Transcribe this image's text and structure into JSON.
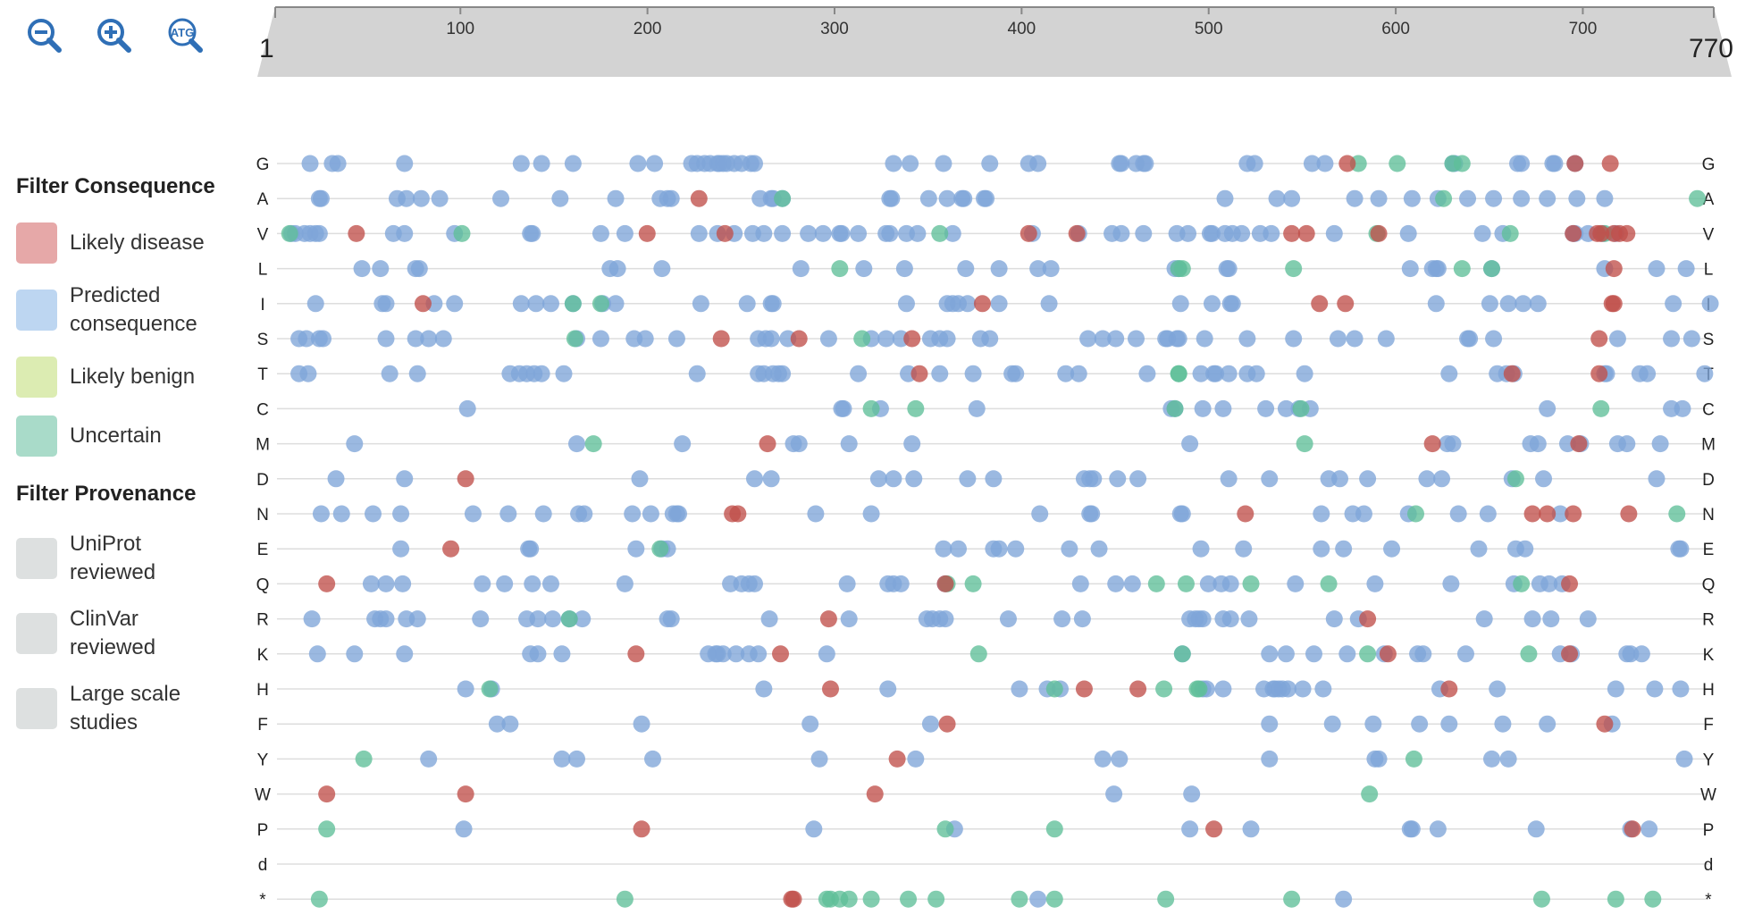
{
  "toolbar": {
    "zoom_out": "zoom-out-icon",
    "zoom_in": "zoom-in-icon",
    "atg_label": "ATG"
  },
  "ruler": {
    "start_label": "1",
    "end_label": "770",
    "ticks": [
      "100",
      "200",
      "300",
      "400",
      "500",
      "600",
      "700"
    ],
    "range": [
      1,
      770
    ]
  },
  "filters": {
    "consequence_title": "Filter Consequence",
    "consequence": [
      {
        "label": "Likely disease",
        "color": "#e6a8a8"
      },
      {
        "label": "Predicted consequence",
        "color": "#bdd6f1"
      },
      {
        "label": "Likely benign",
        "color": "#dcecb2"
      },
      {
        "label": "Uncertain",
        "color": "#a9dbc9"
      }
    ],
    "provenance_title": "Filter Provenance",
    "provenance": [
      {
        "label": "UniProt reviewed",
        "color": "#dde0e0"
      },
      {
        "label": "ClinVar reviewed",
        "color": "#dde0e0"
      },
      {
        "label": "Large scale studies",
        "color": "#dde0e0"
      }
    ]
  },
  "colors": {
    "predicted": "#7fa5d9",
    "disease": "#c0504a",
    "uncertain": "#5fbf98",
    "ruler_fill": "#d3d3d3",
    "gridline": "#dddddd"
  },
  "residues": [
    "G",
    "A",
    "V",
    "L",
    "I",
    "S",
    "T",
    "C",
    "M",
    "D",
    "N",
    "E",
    "Q",
    "R",
    "K",
    "H",
    "F",
    "Y",
    "W",
    "P",
    "d",
    "*"
  ],
  "variants": {
    "G": {
      "b": [
        15,
        27,
        30,
        66,
        129,
        140,
        157,
        192,
        201,
        221,
        224,
        228,
        231,
        235,
        236,
        238,
        240,
        244,
        248,
        253,
        255,
        330,
        339,
        357,
        382,
        403,
        408,
        452,
        453,
        461,
        465,
        466,
        521,
        525,
        556,
        563,
        632,
        633,
        667,
        669,
        686,
        687,
        698
      ],
      "r": [
        575,
        698,
        717
      ],
      "g": [
        581,
        602,
        637,
        632
      ]
    },
    "A": {
      "b": [
        20,
        21,
        62,
        67,
        75,
        85,
        118,
        150,
        180,
        204,
        208,
        210,
        258,
        264,
        265,
        270,
        328,
        329,
        349,
        359,
        367,
        368,
        379,
        380,
        509,
        537,
        545,
        579,
        592,
        610,
        624,
        640,
        654,
        669,
        683,
        699,
        714
      ],
      "r": [
        225
      ],
      "g": [
        270,
        627,
        764
      ]
    },
    "V": {
      "b": [
        5,
        7,
        12,
        15,
        18,
        20,
        60,
        66,
        93,
        134,
        135,
        172,
        185,
        225,
        235,
        244,
        254,
        260,
        270,
        284,
        292,
        301,
        302,
        311,
        326,
        328,
        337,
        343,
        362,
        405,
        430,
        448,
        453,
        465,
        483,
        489,
        501,
        502,
        509,
        513,
        518,
        528,
        534,
        568,
        608,
        648,
        659,
        697,
        698,
        713,
        720,
        705
      ],
      "r": [
        40,
        197,
        239,
        403,
        429,
        545,
        553,
        592,
        697,
        719,
        722,
        726,
        710,
        712
      ],
      "g": [
        4,
        97,
        355,
        591,
        663,
        714
      ]
    },
    "L": {
      "b": [
        43,
        53,
        72,
        74,
        177,
        181,
        205,
        280,
        314,
        336,
        369,
        387,
        408,
        415,
        482,
        484,
        510,
        511,
        609,
        621,
        623,
        624,
        653,
        714,
        742,
        758
      ],
      "r": [
        719
      ],
      "g": [
        301,
        484,
        486,
        546,
        637,
        653
      ]
    },
    "I": {
      "b": [
        18,
        54,
        56,
        82,
        93,
        129,
        137,
        145,
        157,
        173,
        180,
        226,
        251,
        264,
        265,
        337,
        359,
        362,
        365,
        370,
        387,
        414,
        485,
        502,
        512,
        513,
        623,
        652,
        662,
        670,
        678,
        751,
        771
      ],
      "r": [
        76,
        378,
        560,
        574,
        718,
        719
      ],
      "g": [
        157,
        172
      ]
    },
    "S": {
      "b": [
        9,
        13,
        20,
        22,
        56,
        72,
        79,
        87,
        159,
        172,
        190,
        196,
        213,
        257,
        261,
        264,
        273,
        295,
        318,
        326,
        334,
        350,
        355,
        359,
        377,
        382,
        435,
        443,
        450,
        461,
        477,
        478,
        483,
        484,
        498,
        521,
        546,
        570,
        579,
        596,
        640,
        641,
        654,
        721,
        750,
        761
      ],
      "r": [
        237,
        279,
        340,
        711
      ],
      "g": [
        158,
        313
      ]
    },
    "T": {
      "b": [
        9,
        14,
        58,
        73,
        123,
        128,
        132,
        136,
        140,
        152,
        224,
        257,
        260,
        265,
        268,
        270,
        311,
        338,
        355,
        373,
        394,
        396,
        423,
        430,
        467,
        496,
        503,
        504,
        511,
        521,
        526,
        552,
        630,
        656,
        661,
        665,
        714,
        715,
        733,
        737,
        768
      ],
      "r": [
        344,
        664,
        711
      ],
      "g": [
        484,
        484
      ]
    },
    "C": {
      "b": [
        100,
        302,
        303,
        323,
        375,
        480,
        482,
        497,
        508,
        531,
        542,
        549,
        555,
        683,
        750,
        756
      ],
      "r": [],
      "g": [
        318,
        342,
        482,
        550,
        712
      ]
    },
    "M": {
      "b": [
        39,
        159,
        216,
        276,
        279,
        306,
        340,
        490,
        629,
        632,
        674,
        678,
        694,
        701,
        721,
        726,
        744
      ],
      "r": [
        262,
        621,
        700
      ],
      "g": [
        168,
        552
      ]
    },
    "D": {
      "b": [
        29,
        66,
        193,
        255,
        264,
        322,
        330,
        341,
        370,
        384,
        438,
        433,
        436,
        451,
        462,
        511,
        533,
        565,
        571,
        586,
        626,
        618,
        664,
        681,
        742
      ],
      "r": [
        99
      ],
      "g": [
        666
      ]
    },
    "N": {
      "b": [
        21,
        32,
        49,
        64,
        103,
        122,
        141,
        160,
        163,
        189,
        199,
        211,
        213,
        214,
        288,
        318,
        409,
        436,
        437,
        485,
        486,
        561,
        578,
        584,
        608,
        635,
        651,
        690
      ],
      "r": [
        243,
        246,
        520,
        675,
        683,
        697,
        727
      ],
      "g": [
        612,
        753
      ]
    },
    "E": {
      "b": [
        64,
        133,
        134,
        191,
        205,
        208,
        357,
        365,
        384,
        387,
        396,
        425,
        441,
        496,
        519,
        561,
        573,
        599,
        646,
        666,
        671,
        754,
        755
      ],
      "r": [
        91
      ],
      "g": [
        204
      ]
    },
    "Q": {
      "b": [
        48,
        56,
        65,
        108,
        120,
        135,
        145,
        185,
        242,
        248,
        255,
        252,
        305,
        327,
        330,
        334,
        358,
        431,
        450,
        459,
        500,
        507,
        512,
        547,
        590,
        631,
        665,
        679,
        684,
        691
      ],
      "r": [
        24,
        358,
        695
      ],
      "g": [
        359,
        373,
        472,
        488,
        523,
        565,
        669
      ],
      "h": []
    },
    "R": {
      "b": [
        16,
        50,
        53,
        56,
        67,
        73,
        107,
        132,
        138,
        146,
        155,
        162,
        208,
        210,
        263,
        306,
        348,
        351,
        355,
        358,
        392,
        421,
        432,
        490,
        493,
        495,
        497,
        508,
        512,
        522,
        568,
        581,
        649,
        675,
        685,
        705
      ],
      "r": [
        295,
        586
      ],
      "g": [
        155
      ]
    },
    "K": {
      "b": [
        19,
        39,
        66,
        134,
        138,
        151,
        230,
        234,
        235,
        238,
        245,
        252,
        257,
        294,
        486,
        533,
        542,
        557,
        575,
        595,
        613,
        616,
        639,
        690,
        696,
        726,
        728,
        734
      ],
      "r": [
        191,
        269,
        597,
        695
      ],
      "g": [
        376,
        486,
        586,
        673
      ]
    },
    "H": {
      "b": [
        99,
        113,
        260,
        327,
        398,
        413,
        420,
        497,
        499,
        508,
        530,
        535,
        536,
        538,
        540,
        543,
        551,
        562,
        625,
        656,
        720,
        741,
        755
      ],
      "r": [
        296,
        433,
        462,
        630
      ],
      "g": [
        112,
        417,
        495,
        476,
        494
      ]
    },
    "F": {
      "b": [
        116,
        123,
        194,
        285,
        350,
        533,
        567,
        589,
        614,
        630,
        659,
        683,
        718
      ],
      "r": [
        359,
        714
      ],
      "g": []
    },
    "Y": {
      "b": [
        79,
        151,
        159,
        200,
        290,
        342,
        443,
        452,
        533,
        590,
        592,
        653,
        662,
        757
      ],
      "r": [
        332
      ],
      "g": [
        44,
        611
      ]
    },
    "W": {
      "b": [
        449,
        491
      ],
      "r": [
        24,
        99,
        320
      ],
      "g": [
        587
      ]
    },
    "P": {
      "b": [
        98,
        287,
        363,
        490,
        523,
        609,
        610,
        624,
        677,
        728,
        738
      ],
      "r": [
        194,
        503,
        729
      ],
      "g": [
        24,
        358,
        417
      ]
    },
    "d": {
      "b": [],
      "r": [],
      "g": []
    },
    "*": {
      "b": [
        408,
        573
      ],
      "r": [
        275,
        276
      ],
      "g": [
        20,
        185,
        294,
        296,
        301,
        306,
        318,
        338,
        353,
        398,
        417,
        477,
        545,
        680,
        720,
        740
      ]
    }
  }
}
